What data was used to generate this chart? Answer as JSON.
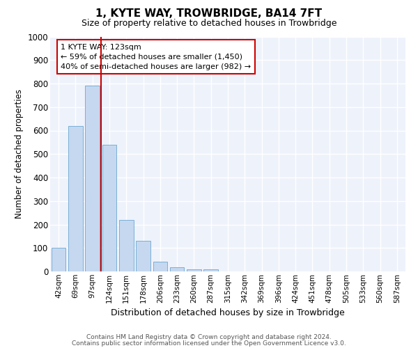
{
  "title": "1, KYTE WAY, TROWBRIDGE, BA14 7FT",
  "subtitle": "Size of property relative to detached houses in Trowbridge",
  "xlabel": "Distribution of detached houses by size in Trowbridge",
  "ylabel": "Number of detached properties",
  "bar_color": "#c5d8f0",
  "bar_edge_color": "#7aafd4",
  "categories": [
    "42sqm",
    "69sqm",
    "97sqm",
    "124sqm",
    "151sqm",
    "178sqm",
    "206sqm",
    "233sqm",
    "260sqm",
    "287sqm",
    "315sqm",
    "342sqm",
    "369sqm",
    "396sqm",
    "424sqm",
    "451sqm",
    "478sqm",
    "505sqm",
    "533sqm",
    "560sqm",
    "587sqm"
  ],
  "values": [
    100,
    620,
    790,
    540,
    220,
    130,
    42,
    17,
    10,
    10,
    0,
    0,
    0,
    0,
    0,
    0,
    0,
    0,
    0,
    0,
    0
  ],
  "ylim": [
    0,
    1000
  ],
  "yticks": [
    0,
    100,
    200,
    300,
    400,
    500,
    600,
    700,
    800,
    900,
    1000
  ],
  "vline_x_index": 2.5,
  "annotation_text": "1 KYTE WAY: 123sqm\n← 59% of detached houses are smaller (1,450)\n40% of semi-detached houses are larger (982) →",
  "annotation_box_color": "#ffffff",
  "annotation_box_edge_color": "#cc0000",
  "vline_color": "#cc0000",
  "plot_bg_color": "#eef2fb",
  "footer_line1": "Contains HM Land Registry data © Crown copyright and database right 2024.",
  "footer_line2": "Contains public sector information licensed under the Open Government Licence v3.0."
}
